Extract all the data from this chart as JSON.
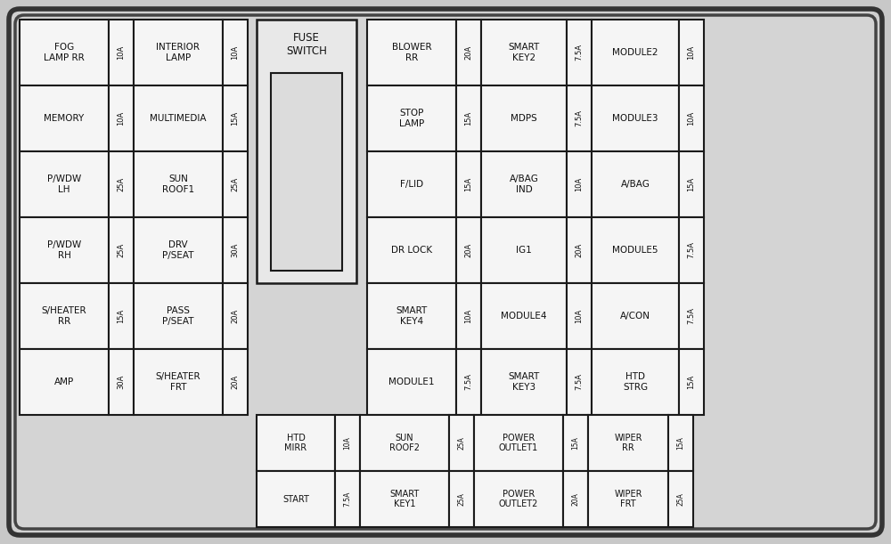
{
  "bg_color": "#c8c8c8",
  "panel_bg": "#d2d2d2",
  "cell_bg": "#f5f5f5",
  "cell_border": "#1a1a1a",
  "text_color": "#111111",
  "fuse_switch_label": "FUSE\nSWITCH",
  "left_fuses": [
    [
      "FOG\nLAMP RR",
      "10A",
      "INTERIOR\nLAMP",
      "10A"
    ],
    [
      "MEMORY",
      "10A",
      "MULTIMEDIA",
      "15A"
    ],
    [
      "P/WDW\nLH",
      "25A",
      "SUN\nROOF1",
      "25A"
    ],
    [
      "P/WDW\nRH",
      "25A",
      "DRV\nP/SEAT",
      "30A"
    ],
    [
      "S/HEATER\nRR",
      "15A",
      "PASS\nP/SEAT",
      "20A"
    ],
    [
      "AMP",
      "30A",
      "S/HEATER\nFRT",
      "20A"
    ]
  ],
  "right_fuses": [
    [
      "BLOWER\nRR",
      "20A",
      "SMART\nKEY2",
      "7.5A",
      "MODULE2",
      "10A"
    ],
    [
      "STOP\nLAMP",
      "15A",
      "MDPS",
      "7.5A",
      "MODULE3",
      "10A"
    ],
    [
      "F/LID",
      "15A",
      "A/BAG\nIND",
      "10A",
      "A/BAG",
      "15A"
    ],
    [
      "DR LOCK",
      "20A",
      "IG1",
      "20A",
      "MODULE5",
      "7.5A"
    ],
    [
      "SMART\nKEY4",
      "10A",
      "MODULE4",
      "10A",
      "A/CON",
      "7.5A"
    ],
    [
      "MODULE1",
      "7.5A",
      "SMART\nKEY3",
      "7.5A",
      "HTD\nSTRG",
      "15A"
    ]
  ],
  "bottom_fuses": [
    [
      "HTD\nMIRR",
      "10A",
      "SUN\nROOF2",
      "25A",
      "POWER\nOUTLET1",
      "15A",
      "WIPER\nRR",
      "15A"
    ],
    [
      "START",
      "7.5A",
      "SMART\nKEY1",
      "25A",
      "POWER\nOUTLET2",
      "20A",
      "WIPER\nFRT",
      "25A"
    ]
  ]
}
